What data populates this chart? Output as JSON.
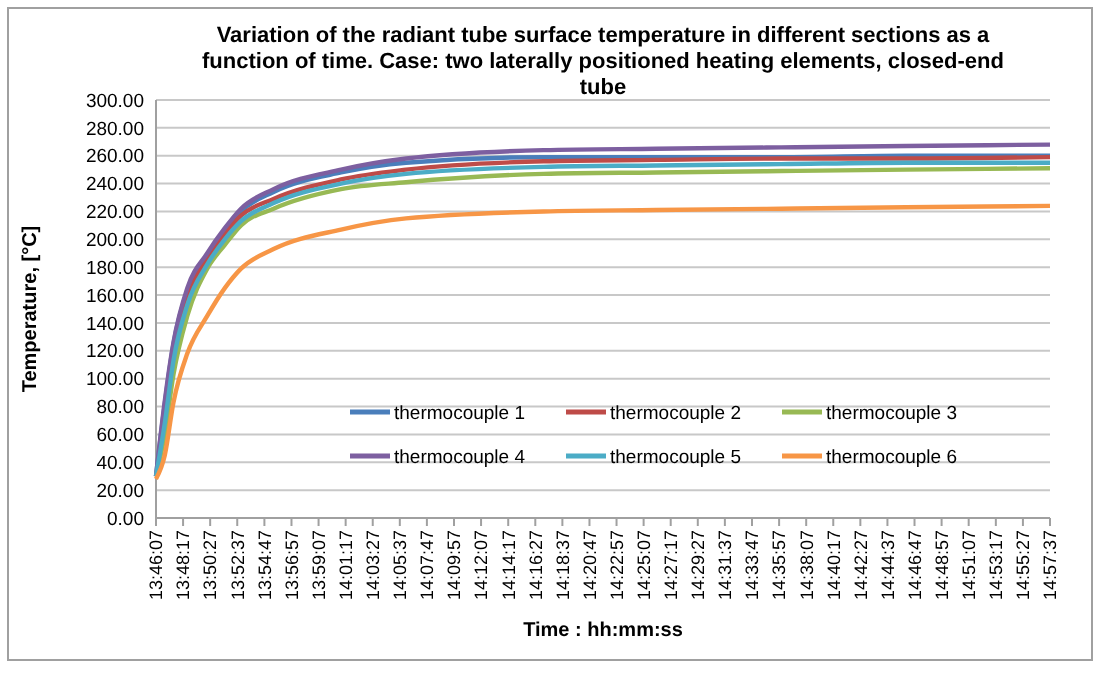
{
  "chart_data": {
    "type": "line",
    "title": "Variation of the radiant tube surface temperature in different sections as a function of time. Case:  two laterally positioned heating elements, closed-end tube",
    "xlabel": "Time :  hh:mm:ss",
    "ylabel": "Temperature, [°C]",
    "x": [
      13.7686,
      13.7803,
      13.7919,
      13.8103,
      13.8369,
      13.8603,
      13.8819,
      13.9253,
      14.0153,
      14.1019,
      14.2853,
      14.4353,
      14.6019,
      14.7686,
      14.9603
    ],
    "series": [
      {
        "name": "thermocouple 1",
        "color": "#4a7ebb",
        "values": [
          30,
          82,
          125,
          163,
          189,
          206,
          220,
          234,
          248,
          255,
          259,
          259,
          259,
          260,
          260
        ]
      },
      {
        "name": "thermocouple 2",
        "color": "#be4b48",
        "values": [
          null,
          null,
          118,
          158,
          186,
          204,
          217,
          229,
          243,
          250,
          256,
          257,
          258,
          258,
          259
        ]
      },
      {
        "name": "thermocouple 3",
        "color": "#98b954",
        "values": [
          30,
          60,
          103,
          145,
          179,
          196,
          210,
          222,
          236,
          241,
          247,
          248,
          249,
          250,
          251
        ]
      },
      {
        "name": "thermocouple 4",
        "color": "#7d5fa0",
        "values": [
          30,
          84,
          126,
          165,
          190,
          208,
          222,
          236,
          250,
          258,
          264,
          265,
          266,
          267,
          268
        ]
      },
      {
        "name": "thermocouple 5",
        "color": "#4bacc6",
        "values": [
          30,
          68,
          113,
          153,
          182,
          200,
          213,
          226,
          240,
          247,
          252,
          253,
          254,
          255,
          255
        ]
      },
      {
        "name": "thermocouple 6",
        "color": "#f79646",
        "values": [
          28,
          45,
          83,
          118,
          145,
          165,
          179,
          193,
          207,
          215,
          220,
          221,
          222,
          223,
          224
        ]
      }
    ],
    "xlim": [
      13.7686,
      14.9603
    ],
    "xticks": [
      {
        "value": 13.7686,
        "label": "13:46:07"
      },
      {
        "value": 13.8047,
        "label": "13:48:17"
      },
      {
        "value": 13.8408,
        "label": "13:50:27"
      },
      {
        "value": 13.8769,
        "label": "13:52:37"
      },
      {
        "value": 13.9131,
        "label": "13:54:47"
      },
      {
        "value": 13.9492,
        "label": "13:56:57"
      },
      {
        "value": 13.9853,
        "label": "13:59:07"
      },
      {
        "value": 14.0214,
        "label": "14:01:17"
      },
      {
        "value": 14.0575,
        "label": "14:03:27"
      },
      {
        "value": 14.0936,
        "label": "14:05:37"
      },
      {
        "value": 14.1297,
        "label": "14:07:47"
      },
      {
        "value": 14.1658,
        "label": "14:09:57"
      },
      {
        "value": 14.2019,
        "label": "14:12:07"
      },
      {
        "value": 14.2381,
        "label": "14:14:17"
      },
      {
        "value": 14.2742,
        "label": "14:16:27"
      },
      {
        "value": 14.3103,
        "label": "14:18:37"
      },
      {
        "value": 14.3464,
        "label": "14:20:47"
      },
      {
        "value": 14.3825,
        "label": "14:22:57"
      },
      {
        "value": 14.4186,
        "label": "14:25:07"
      },
      {
        "value": 14.4547,
        "label": "14:27:17"
      },
      {
        "value": 14.4908,
        "label": "14:29:27"
      },
      {
        "value": 14.5269,
        "label": "14:31:37"
      },
      {
        "value": 14.5631,
        "label": "14:33:47"
      },
      {
        "value": 14.5992,
        "label": "14:35:57"
      },
      {
        "value": 14.6353,
        "label": "14:38:07"
      },
      {
        "value": 14.6714,
        "label": "14:40:17"
      },
      {
        "value": 14.7075,
        "label": "14:42:27"
      },
      {
        "value": 14.7436,
        "label": "14:44:37"
      },
      {
        "value": 14.7797,
        "label": "14:46:47"
      },
      {
        "value": 14.8158,
        "label": "14:48:57"
      },
      {
        "value": 14.8519,
        "label": "14:51:07"
      },
      {
        "value": 14.8881,
        "label": "14:53:17"
      },
      {
        "value": 14.9242,
        "label": "14:55:27"
      },
      {
        "value": 14.9603,
        "label": "14:57:37"
      }
    ],
    "ylim": [
      0,
      300
    ],
    "yticks": [
      {
        "value": 0,
        "label": "0.00"
      },
      {
        "value": 20,
        "label": "20.00"
      },
      {
        "value": 40,
        "label": "40.00"
      },
      {
        "value": 60,
        "label": "60.00"
      },
      {
        "value": 80,
        "label": "80.00"
      },
      {
        "value": 100,
        "label": "100.00"
      },
      {
        "value": 120,
        "label": "120.00"
      },
      {
        "value": 140,
        "label": "140.00"
      },
      {
        "value": 160,
        "label": "160.00"
      },
      {
        "value": 180,
        "label": "180.00"
      },
      {
        "value": 200,
        "label": "200.00"
      },
      {
        "value": 220,
        "label": "220.00"
      },
      {
        "value": 240,
        "label": "240.00"
      },
      {
        "value": 260,
        "label": "260.00"
      },
      {
        "value": 280,
        "label": "280.00"
      },
      {
        "value": 300,
        "label": "300.00"
      }
    ],
    "grid": "y",
    "legend": "bottom",
    "marker": "none",
    "line_style": "solid"
  }
}
